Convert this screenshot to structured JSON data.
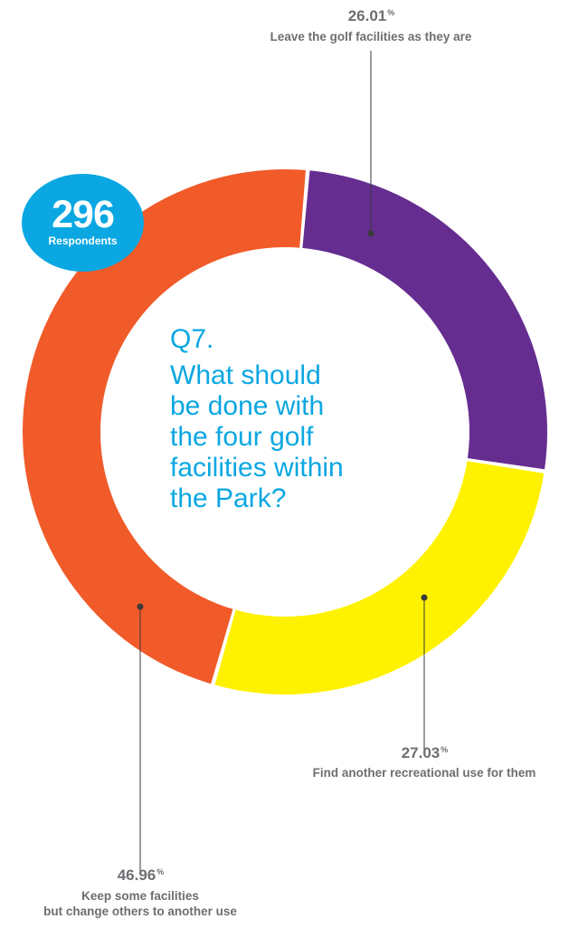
{
  "badge": {
    "count": "296",
    "label": "Respondents",
    "color": "#0aa7e2"
  },
  "question": {
    "number": "Q7.",
    "text": "What should be done with the four golf facilities within the Park?",
    "lines": [
      "What should",
      "be done with",
      "the four golf",
      "facilities within",
      "the Park?"
    ],
    "color": "#0aa7e2"
  },
  "chart_data": {
    "type": "pie",
    "variant": "donut",
    "unit": "%",
    "slices": [
      {
        "key": "leave",
        "value": 26.01,
        "value_label": "26.01",
        "label_lines": [
          "Leave the golf facilities as they are"
        ],
        "color": "#662d91"
      },
      {
        "key": "find",
        "value": 27.03,
        "value_label": "27.03",
        "label_lines": [
          "Find another recreational use for them"
        ],
        "color": "#fff200"
      },
      {
        "key": "keep",
        "value": 46.96,
        "value_label": "46.96",
        "label_lines": [
          "Keep some facilities",
          "but change others to another use"
        ],
        "color": "#f15a29"
      }
    ],
    "legend": "none",
    "grid": false
  }
}
